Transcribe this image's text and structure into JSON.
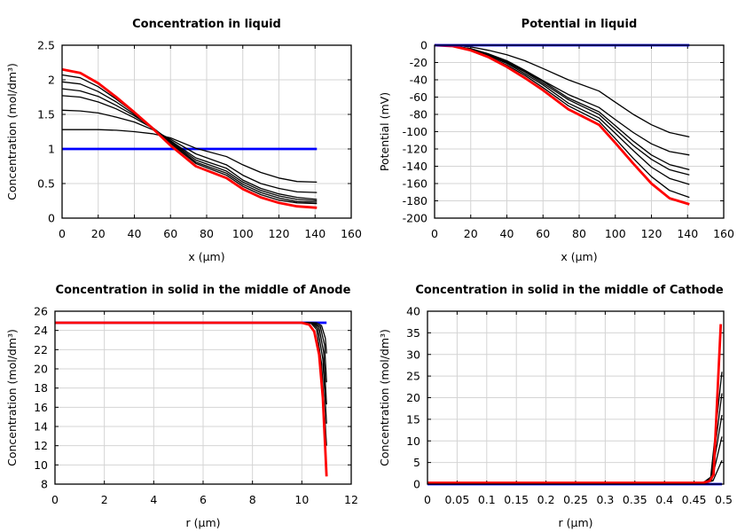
{
  "chart_data": [
    {
      "type": "line",
      "title": "Concentration in liquid",
      "xlabel": "x (µm)",
      "ylabel": "Concentration (mol/dm³)",
      "xlim": [
        0,
        160
      ],
      "ylim": [
        0,
        2.5
      ],
      "xticks": [
        "0",
        "20",
        "40",
        "60",
        "80",
        "100",
        "120",
        "140",
        "160"
      ],
      "yticks": [
        "0",
        "0.5",
        "1",
        "1.5",
        "2",
        "2.5"
      ],
      "grid": true,
      "x": [
        0,
        10,
        20,
        30,
        40,
        50,
        60,
        74,
        91,
        100,
        110,
        120,
        130,
        141
      ],
      "series": [
        {
          "color": "#0000ff",
          "values": [
            1,
            1,
            1,
            1,
            1,
            1,
            1,
            1,
            1,
            1,
            1,
            1,
            1,
            1
          ]
        },
        {
          "color": "#000000",
          "values": [
            1.28,
            1.28,
            1.28,
            1.27,
            1.25,
            1.22,
            1.16,
            1.01,
            0.89,
            0.77,
            0.66,
            0.58,
            0.53,
            0.52
          ]
        },
        {
          "color": "#000000",
          "values": [
            1.56,
            1.55,
            1.52,
            1.46,
            1.39,
            1.28,
            1.14,
            0.93,
            0.77,
            0.62,
            0.5,
            0.43,
            0.38,
            0.37
          ]
        },
        {
          "color": "#000000",
          "values": [
            1.77,
            1.75,
            1.68,
            1.58,
            1.45,
            1.3,
            1.12,
            0.87,
            0.72,
            0.55,
            0.43,
            0.35,
            0.3,
            0.27
          ]
        },
        {
          "color": "#000000",
          "values": [
            1.87,
            1.84,
            1.76,
            1.63,
            1.48,
            1.31,
            1.11,
            0.84,
            0.68,
            0.52,
            0.4,
            0.32,
            0.27,
            0.25
          ]
        },
        {
          "color": "#000000",
          "values": [
            1.97,
            1.94,
            1.83,
            1.68,
            1.5,
            1.31,
            1.1,
            0.81,
            0.65,
            0.49,
            0.37,
            0.29,
            0.24,
            0.23
          ]
        },
        {
          "color": "#000000",
          "values": [
            2.07,
            2.03,
            1.9,
            1.72,
            1.52,
            1.31,
            1.08,
            0.79,
            0.62,
            0.46,
            0.34,
            0.26,
            0.22,
            0.21
          ]
        },
        {
          "color": "#ff0000",
          "values": [
            2.15,
            2.1,
            1.95,
            1.75,
            1.53,
            1.3,
            1.05,
            0.75,
            0.58,
            0.42,
            0.3,
            0.22,
            0.17,
            0.15
          ]
        }
      ]
    },
    {
      "type": "line",
      "title": "Potential in liquid",
      "xlabel": "x (µm)",
      "ylabel": "Potential (mV)",
      "xlim": [
        0,
        160
      ],
      "ylim": [
        -200,
        0
      ],
      "xticks": [
        "0",
        "20",
        "40",
        "60",
        "80",
        "100",
        "120",
        "140",
        "160"
      ],
      "yticks": [
        "-200",
        "-180",
        "-160",
        "-140",
        "-120",
        "-100",
        "-80",
        "-60",
        "-40",
        "-20",
        "0"
      ],
      "grid": true,
      "x": [
        0,
        10,
        20,
        30,
        40,
        50,
        60,
        74,
        91,
        100,
        110,
        120,
        130,
        141
      ],
      "series": [
        {
          "color": "#000000",
          "values": [
            0,
            0,
            -2,
            -6,
            -11,
            -18,
            -27,
            -40,
            -53,
            -66,
            -80,
            -92,
            -101,
            -106
          ]
        },
        {
          "color": "#000000",
          "values": [
            0,
            -1,
            -4,
            -10,
            -18,
            -29,
            -41,
            -57,
            -72,
            -86,
            -101,
            -114,
            -123,
            -127
          ]
        },
        {
          "color": "#000000",
          "values": [
            0,
            -1,
            -4,
            -11,
            -19,
            -30,
            -42,
            -61,
            -77,
            -93,
            -111,
            -127,
            -138,
            -144
          ]
        },
        {
          "color": "#000000",
          "values": [
            0,
            -1,
            -4,
            -11,
            -20,
            -31,
            -44,
            -63,
            -80,
            -97,
            -116,
            -132,
            -144,
            -150
          ]
        },
        {
          "color": "#000000",
          "values": [
            0,
            -1,
            -5,
            -12,
            -21,
            -33,
            -46,
            -67,
            -84,
            -102,
            -122,
            -141,
            -154,
            -161
          ]
        },
        {
          "color": "#000000",
          "values": [
            0,
            -1,
            -5,
            -13,
            -23,
            -35,
            -49,
            -70,
            -88,
            -108,
            -131,
            -152,
            -168,
            -176
          ]
        },
        {
          "color": "#ff0000",
          "values": [
            0,
            -1,
            -6,
            -14,
            -25,
            -38,
            -52,
            -74,
            -92,
            -113,
            -137,
            -160,
            -177,
            -184
          ]
        },
        {
          "color": "#0000ff",
          "values": [
            0,
            0,
            0,
            0,
            0,
            0,
            0,
            0,
            0,
            0,
            0,
            0,
            0,
            0
          ]
        }
      ]
    },
    {
      "type": "line",
      "title": "Concentration in solid in the middle of Anode",
      "xlabel": "r (µm)",
      "ylabel": "Concentration (mol/dm³)",
      "xlim": [
        0,
        12
      ],
      "ylim": [
        8,
        26
      ],
      "xticks": [
        "0",
        "2",
        "4",
        "6",
        "8",
        "10",
        "12"
      ],
      "yticks": [
        "8",
        "10",
        "12",
        "14",
        "16",
        "18",
        "20",
        "22",
        "24",
        "26"
      ],
      "grid": true,
      "series": [
        {
          "color": "#0000ff",
          "points": [
            [
              0,
              24.8
            ],
            [
              11,
              24.8
            ]
          ]
        },
        {
          "color": "#000000",
          "points": [
            [
              0,
              24.8
            ],
            [
              10.6,
              24.8
            ],
            [
              10.8,
              24.5
            ],
            [
              10.95,
              23.2
            ],
            [
              11,
              21.6
            ]
          ]
        },
        {
          "color": "#000000",
          "points": [
            [
              0,
              24.8
            ],
            [
              10.5,
              24.8
            ],
            [
              10.75,
              24.4
            ],
            [
              10.92,
              22.5
            ],
            [
              11,
              18.6
            ]
          ]
        },
        {
          "color": "#000000",
          "points": [
            [
              0,
              24.8
            ],
            [
              10.45,
              24.8
            ],
            [
              10.7,
              24.3
            ],
            [
              10.88,
              21.8
            ],
            [
              11,
              16.3
            ]
          ]
        },
        {
          "color": "#000000",
          "points": [
            [
              0,
              24.8
            ],
            [
              10.4,
              24.8
            ],
            [
              10.65,
              24.2
            ],
            [
              10.85,
              21.0
            ],
            [
              11,
              14.3
            ]
          ]
        },
        {
          "color": "#000000",
          "points": [
            [
              0,
              24.8
            ],
            [
              10.35,
              24.8
            ],
            [
              10.6,
              24.1
            ],
            [
              10.8,
              20.5
            ],
            [
              11,
              12.0
            ]
          ]
        },
        {
          "color": "#ff0000",
          "points": [
            [
              0,
              24.8
            ],
            [
              10.0,
              24.8
            ],
            [
              10.3,
              24.6
            ],
            [
              10.5,
              23.9
            ],
            [
              10.7,
              21.5
            ],
            [
              10.85,
              17
            ],
            [
              11,
              8.8
            ]
          ]
        }
      ]
    },
    {
      "type": "line",
      "title": "Concentration in solid in the middle of Cathode",
      "xlabel": "r (µm)",
      "ylabel": "Concentration (mol/dm³)",
      "xlim": [
        0,
        0.5
      ],
      "ylim": [
        0,
        40
      ],
      "xticks": [
        "0",
        "0.05",
        "0.1",
        "0.15",
        "0.2",
        "0.25",
        "0.3",
        "0.35",
        "0.4",
        "0.45",
        "0.5"
      ],
      "yticks": [
        "0",
        "5",
        "10",
        "15",
        "20",
        "25",
        "30",
        "35",
        "40"
      ],
      "grid": true,
      "series": [
        {
          "color": "#0000ff",
          "points": [
            [
              0,
              0
            ],
            [
              0.497,
              0
            ]
          ]
        },
        {
          "color": "#000000",
          "points": [
            [
              0,
              0.3
            ],
            [
              0.47,
              0.3
            ],
            [
              0.482,
              0.8
            ],
            [
              0.497,
              5.5
            ]
          ]
        },
        {
          "color": "#000000",
          "points": [
            [
              0,
              0.3
            ],
            [
              0.468,
              0.3
            ],
            [
              0.48,
              1.0
            ],
            [
              0.497,
              11
            ]
          ]
        },
        {
          "color": "#000000",
          "points": [
            [
              0,
              0.3
            ],
            [
              0.467,
              0.3
            ],
            [
              0.479,
              1.2
            ],
            [
              0.497,
              16
            ]
          ]
        },
        {
          "color": "#000000",
          "points": [
            [
              0,
              0.3
            ],
            [
              0.466,
              0.3
            ],
            [
              0.479,
              1.4
            ],
            [
              0.497,
              21
            ]
          ]
        },
        {
          "color": "#000000",
          "points": [
            [
              0,
              0.3
            ],
            [
              0.465,
              0.3
            ],
            [
              0.478,
              1.6
            ],
            [
              0.497,
              26
            ]
          ]
        },
        {
          "color": "#ff0000",
          "points": [
            [
              0,
              0.3
            ],
            [
              0.465,
              0.3
            ],
            [
              0.476,
              0.7
            ],
            [
              0.483,
              2.2
            ],
            [
              0.495,
              37
            ]
          ]
        }
      ]
    }
  ]
}
